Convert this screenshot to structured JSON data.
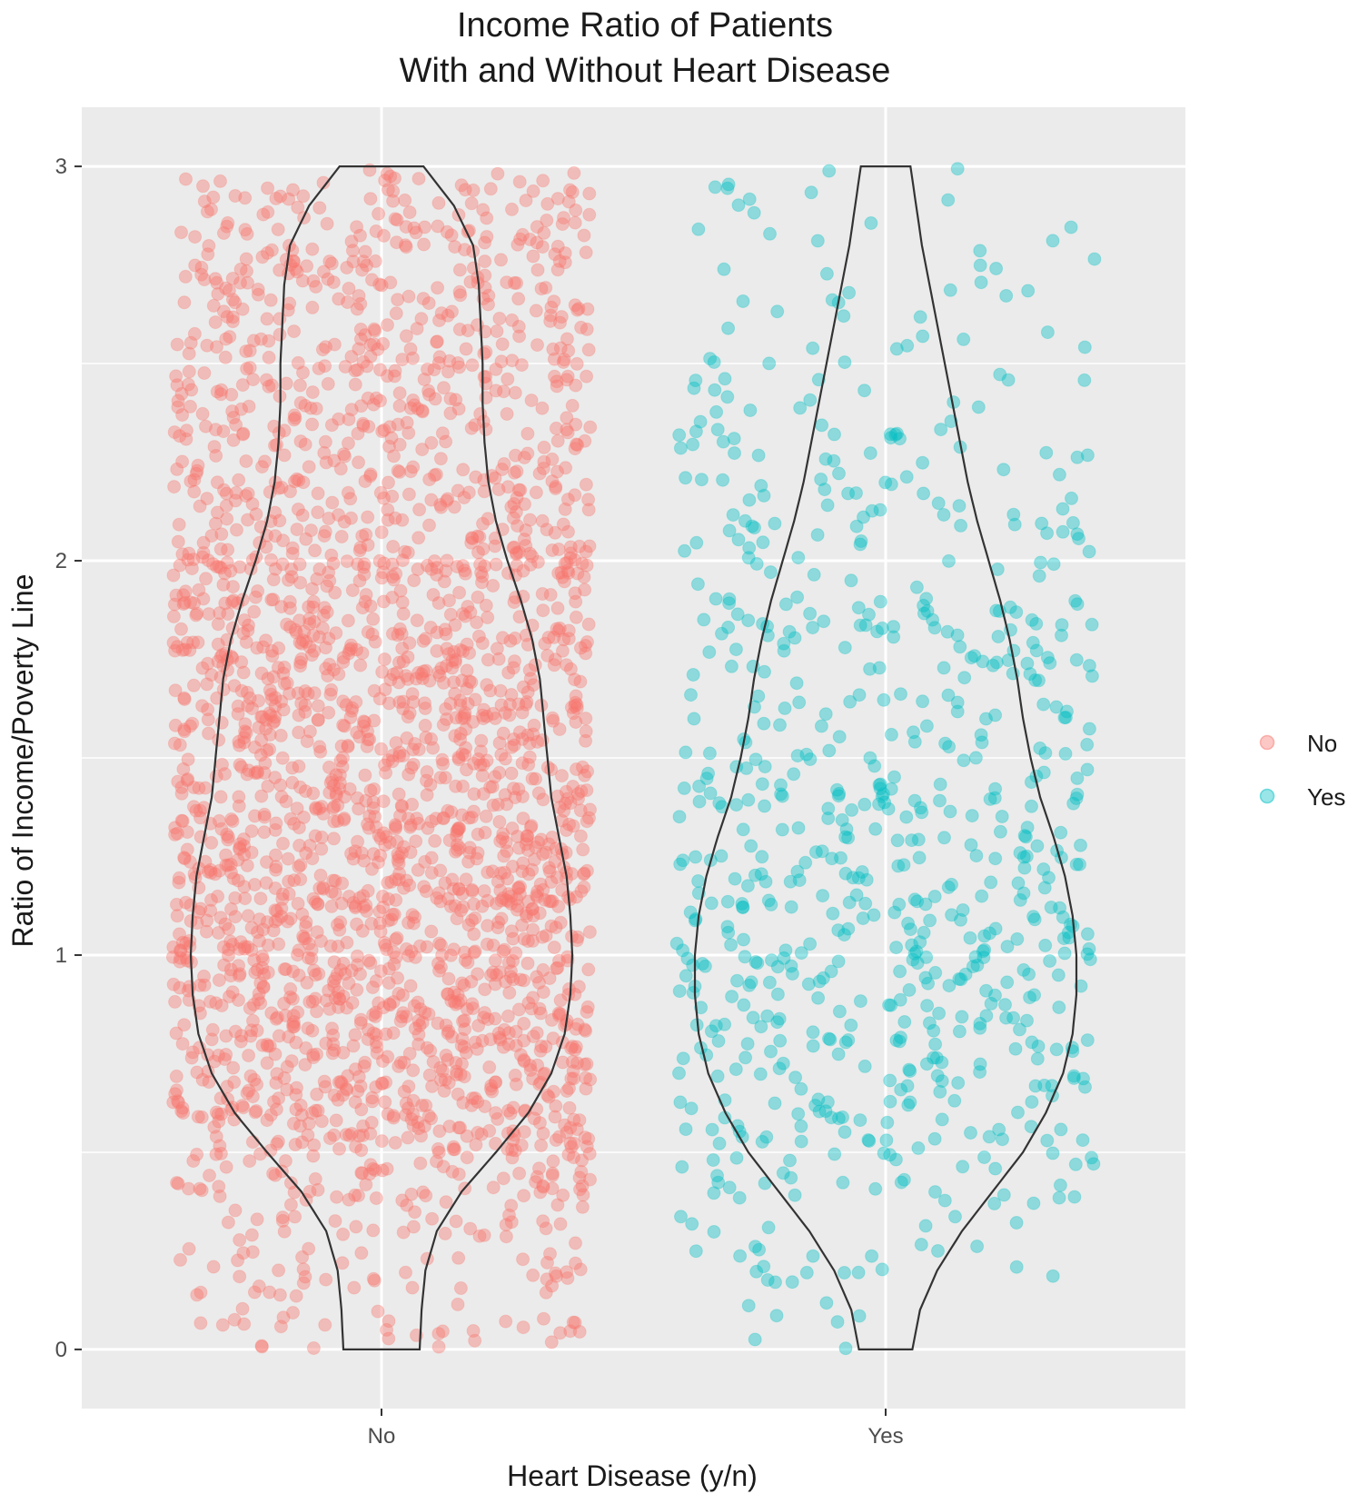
{
  "chart_data": {
    "type": "scatter",
    "subtype": "jittered scatter with violin overlay",
    "title": [
      "Income Ratio of Patients",
      "With and Without Heart Disease"
    ],
    "xlabel": "Heart Disease (y/n)",
    "ylabel": "Ratio of Income/Poverty Line",
    "categories": [
      "No",
      "Yes"
    ],
    "y_ticks": [
      "0",
      "1",
      "2",
      "3"
    ],
    "ylim": [
      -0.15,
      3.15
    ],
    "grid": true,
    "legend_position": "right",
    "legend": [
      {
        "label": "No",
        "color": "#F8766D"
      },
      {
        "label": "Yes",
        "color": "#00BFC4"
      }
    ],
    "series": [
      {
        "name": "No",
        "category": "No",
        "color": "#F8766D",
        "approx_point_count": 2600,
        "y_range": [
          0,
          3
        ],
        "violin_density": [
          {
            "y": 0.0,
            "d": 0.2
          },
          {
            "y": 0.1,
            "d": 0.21
          },
          {
            "y": 0.2,
            "d": 0.23
          },
          {
            "y": 0.3,
            "d": 0.29
          },
          {
            "y": 0.4,
            "d": 0.42
          },
          {
            "y": 0.5,
            "d": 0.6
          },
          {
            "y": 0.6,
            "d": 0.77
          },
          {
            "y": 0.7,
            "d": 0.89
          },
          {
            "y": 0.8,
            "d": 0.96
          },
          {
            "y": 0.9,
            "d": 0.99
          },
          {
            "y": 1.0,
            "d": 1.0
          },
          {
            "y": 1.1,
            "d": 0.99
          },
          {
            "y": 1.2,
            "d": 0.97
          },
          {
            "y": 1.3,
            "d": 0.93
          },
          {
            "y": 1.4,
            "d": 0.89
          },
          {
            "y": 1.5,
            "d": 0.87
          },
          {
            "y": 1.6,
            "d": 0.85
          },
          {
            "y": 1.7,
            "d": 0.83
          },
          {
            "y": 1.8,
            "d": 0.79
          },
          {
            "y": 1.9,
            "d": 0.73
          },
          {
            "y": 2.0,
            "d": 0.66
          },
          {
            "y": 2.1,
            "d": 0.6
          },
          {
            "y": 2.2,
            "d": 0.56
          },
          {
            "y": 2.3,
            "d": 0.54
          },
          {
            "y": 2.4,
            "d": 0.53
          },
          {
            "y": 2.5,
            "d": 0.53
          },
          {
            "y": 2.6,
            "d": 0.52
          },
          {
            "y": 2.7,
            "d": 0.51
          },
          {
            "y": 2.8,
            "d": 0.48
          },
          {
            "y": 2.9,
            "d": 0.38
          },
          {
            "y": 3.0,
            "d": 0.22
          }
        ]
      },
      {
        "name": "Yes",
        "category": "Yes",
        "color": "#00BFC4",
        "approx_point_count": 750,
        "y_range": [
          0,
          3
        ],
        "violin_density": [
          {
            "y": 0.0,
            "d": 0.14
          },
          {
            "y": 0.1,
            "d": 0.18
          },
          {
            "y": 0.2,
            "d": 0.27
          },
          {
            "y": 0.3,
            "d": 0.4
          },
          {
            "y": 0.4,
            "d": 0.56
          },
          {
            "y": 0.5,
            "d": 0.72
          },
          {
            "y": 0.6,
            "d": 0.84
          },
          {
            "y": 0.7,
            "d": 0.93
          },
          {
            "y": 0.8,
            "d": 0.98
          },
          {
            "y": 0.9,
            "d": 1.0
          },
          {
            "y": 1.0,
            "d": 1.0
          },
          {
            "y": 1.1,
            "d": 0.98
          },
          {
            "y": 1.2,
            "d": 0.94
          },
          {
            "y": 1.3,
            "d": 0.88
          },
          {
            "y": 1.4,
            "d": 0.81
          },
          {
            "y": 1.5,
            "d": 0.76
          },
          {
            "y": 1.6,
            "d": 0.72
          },
          {
            "y": 1.7,
            "d": 0.69
          },
          {
            "y": 1.8,
            "d": 0.65
          },
          {
            "y": 1.9,
            "d": 0.6
          },
          {
            "y": 2.0,
            "d": 0.54
          },
          {
            "y": 2.1,
            "d": 0.48
          },
          {
            "y": 2.2,
            "d": 0.43
          },
          {
            "y": 2.3,
            "d": 0.39
          },
          {
            "y": 2.4,
            "d": 0.35
          },
          {
            "y": 2.5,
            "d": 0.31
          },
          {
            "y": 2.6,
            "d": 0.27
          },
          {
            "y": 2.7,
            "d": 0.23
          },
          {
            "y": 2.8,
            "d": 0.19
          },
          {
            "y": 2.9,
            "d": 0.16
          },
          {
            "y": 3.0,
            "d": 0.13
          }
        ]
      }
    ]
  }
}
